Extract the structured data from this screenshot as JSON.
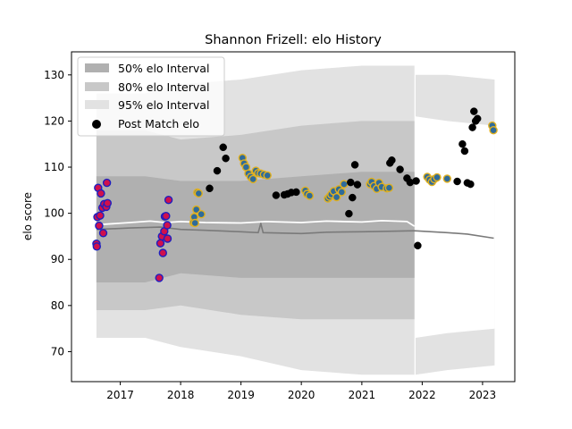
{
  "chart_data": {
    "type": "scatter",
    "title": "Shannon Frizell: elo History",
    "xlabel": "",
    "ylabel": "elo score",
    "xlim": [
      "2016-03-12",
      "2023-07-15"
    ],
    "ylim": [
      63.5,
      135
    ],
    "x_ticks": [
      "2017",
      "2018",
      "2019",
      "2020",
      "2021",
      "2022",
      "2023"
    ],
    "y_ticks": [
      70,
      80,
      90,
      100,
      110,
      120,
      130
    ],
    "grid": false,
    "legend_position": "top-left",
    "legend": [
      {
        "label": "50% elo Interval",
        "color": "#b0b0b0"
      },
      {
        "label": "80% elo Interval",
        "color": "#c8c8c8"
      },
      {
        "label": "95% elo Interval",
        "color": "#e2e2e2"
      },
      {
        "label": "Post Match elo",
        "color": "#000000"
      }
    ],
    "bands": {
      "x": [
        "2016-08-10",
        "2017-06-01",
        "2018-01-01",
        "2019-01-01",
        "2020-01-01",
        "2021-01-01",
        "2021-11-15"
      ],
      "int95": [
        [
          73,
          126
        ],
        [
          73,
          126
        ],
        [
          71,
          128
        ],
        [
          69,
          129
        ],
        [
          66,
          131
        ],
        [
          65,
          132
        ],
        [
          65,
          132
        ]
      ],
      "int80": [
        [
          79,
          118
        ],
        [
          79,
          118
        ],
        [
          80,
          116
        ],
        [
          78,
          117
        ],
        [
          77,
          119
        ],
        [
          77,
          120
        ],
        [
          77,
          120
        ]
      ],
      "int50": [
        [
          85,
          108
        ],
        [
          85,
          108
        ],
        [
          87,
          107
        ],
        [
          86,
          107
        ],
        [
          86,
          108
        ],
        [
          86,
          109
        ],
        [
          86,
          109
        ]
      ]
    },
    "bands_after": {
      "x": [
        "2021-11-22",
        "2022-06-01",
        "2023-03-15"
      ],
      "int95": [
        [
          65,
          130
        ],
        [
          66,
          130
        ],
        [
          67,
          129
        ]
      ],
      "int80": [
        [
          73,
          121
        ],
        [
          74,
          120
        ],
        [
          75,
          119
        ]
      ]
    },
    "median_line": {
      "x": [
        "2016-08-10",
        "2017-03-01",
        "2017-09-01",
        "2018-01-01",
        "2018-06-01",
        "2019-01-01",
        "2019-04-15",
        "2019-05-01",
        "2019-05-15",
        "2020-01-01",
        "2020-06-01",
        "2021-01-01",
        "2021-06-01",
        "2021-11-15",
        "2022-06-01",
        "2022-10-01",
        "2023-03-10"
      ],
      "y": [
        96.5,
        96.8,
        97.0,
        96.5,
        96.3,
        96.0,
        95.8,
        97.8,
        95.8,
        95.6,
        95.9,
        96.0,
        96.1,
        96.2,
        95.8,
        95.5,
        94.6
      ]
    },
    "mean_line": {
      "x": [
        "2016-08-10",
        "2017-03-01",
        "2017-07-01",
        "2017-10-01",
        "2018-01-01",
        "2018-06-01",
        "2019-01-01",
        "2019-06-01",
        "2020-01-01",
        "2020-06-01",
        "2021-01-01",
        "2021-05-01",
        "2021-10-01",
        "2021-11-15"
      ],
      "y": [
        97.5,
        98.0,
        98.3,
        98.0,
        98.2,
        98.0,
        97.9,
        98.2,
        98.0,
        98.3,
        98.1,
        98.4,
        98.2,
        97.2
      ]
    },
    "series": [
      {
        "style": "red",
        "x": [
          "2016-08-10",
          "2016-08-12",
          "2016-08-16",
          "2016-08-20",
          "2016-08-26",
          "2016-09-01",
          "2016-09-06",
          "2016-09-15",
          "2016-09-20",
          "2016-09-26",
          "2016-10-08",
          "2016-10-12",
          "2016-10-16",
          "2017-08-25",
          "2017-09-01",
          "2017-09-10",
          "2017-09-16",
          "2017-09-24",
          "2017-09-28",
          "2017-10-05",
          "2017-10-12",
          "2017-10-14",
          "2017-10-20"
        ],
        "y": [
          93.4,
          92.8,
          99.2,
          105.5,
          97.3,
          99.5,
          104.3,
          101.2,
          95.7,
          102.0,
          101.4,
          106.6,
          102.2,
          86.0,
          93.5,
          95.0,
          91.4,
          96.1,
          99.3,
          99.4,
          97.4,
          94.5,
          102.9
        ]
      },
      {
        "style": "gold",
        "x": [
          "2018-03-20",
          "2018-03-24",
          "2018-03-29",
          "2018-04-06",
          "2018-04-12",
          "2018-04-20",
          "2018-05-06",
          "2019-01-10",
          "2019-01-20",
          "2019-02-01",
          "2019-02-15",
          "2019-03-01",
          "2019-03-15",
          "2019-04-01",
          "2019-04-15",
          "2019-05-01",
          "2019-05-20",
          "2019-06-10",
          "2020-01-25",
          "2020-02-05",
          "2020-02-20",
          "2020-06-10",
          "2020-06-20",
          "2020-07-01",
          "2020-07-15",
          "2020-08-01",
          "2020-08-15",
          "2020-09-01",
          "2020-09-15",
          "2021-02-20",
          "2021-03-01",
          "2021-03-15",
          "2021-04-01",
          "2021-04-15",
          "2021-05-01",
          "2021-06-01",
          "2021-06-15",
          "2022-02-01",
          "2022-02-15",
          "2022-03-01",
          "2022-03-15",
          "2022-04-01",
          "2022-06-01",
          "2023-03-01",
          "2023-03-08"
        ],
        "y": [
          98.0,
          99.2,
          97.9,
          100.8,
          104.5,
          104.3,
          99.8,
          112.0,
          110.8,
          110.0,
          108.6,
          107.9,
          107.4,
          109.2,
          108.7,
          108.6,
          108.4,
          108.2,
          104.9,
          104.2,
          103.8,
          103.2,
          103.6,
          104.1,
          104.8,
          103.5,
          105.2,
          104.6,
          106.3,
          106.3,
          106.8,
          105.9,
          105.3,
          106.6,
          105.7,
          105.4,
          105.5,
          107.9,
          107.3,
          106.8,
          107.4,
          107.8,
          107.5,
          119.0,
          118.0
        ]
      },
      {
        "style": "black",
        "x": [
          "2018-06-25",
          "2018-08-10",
          "2018-09-15",
          "2018-10-01",
          "2019-08-01",
          "2019-09-20",
          "2019-10-10",
          "2019-11-01",
          "2019-12-01",
          "2020-10-15",
          "2020-10-25",
          "2020-11-05",
          "2020-11-20",
          "2020-12-05",
          "2021-06-20",
          "2021-07-01",
          "2021-08-20",
          "2021-10-01",
          "2021-10-20",
          "2021-11-25",
          "2021-12-05",
          "2022-08-01",
          "2022-09-01",
          "2022-09-15",
          "2022-10-01",
          "2022-10-20",
          "2022-11-01",
          "2022-11-10",
          "2022-11-20",
          "2022-12-01"
        ],
        "y": [
          105.4,
          109.2,
          114.3,
          111.9,
          103.9,
          104.0,
          104.2,
          104.5,
          104.6,
          99.9,
          106.7,
          103.4,
          110.5,
          106.2,
          110.9,
          111.5,
          109.5,
          107.6,
          106.7,
          107.0,
          93.0,
          106.9,
          115.0,
          113.5,
          106.6,
          106.3,
          118.6,
          122.1,
          120.0,
          120.5
        ]
      }
    ]
  }
}
